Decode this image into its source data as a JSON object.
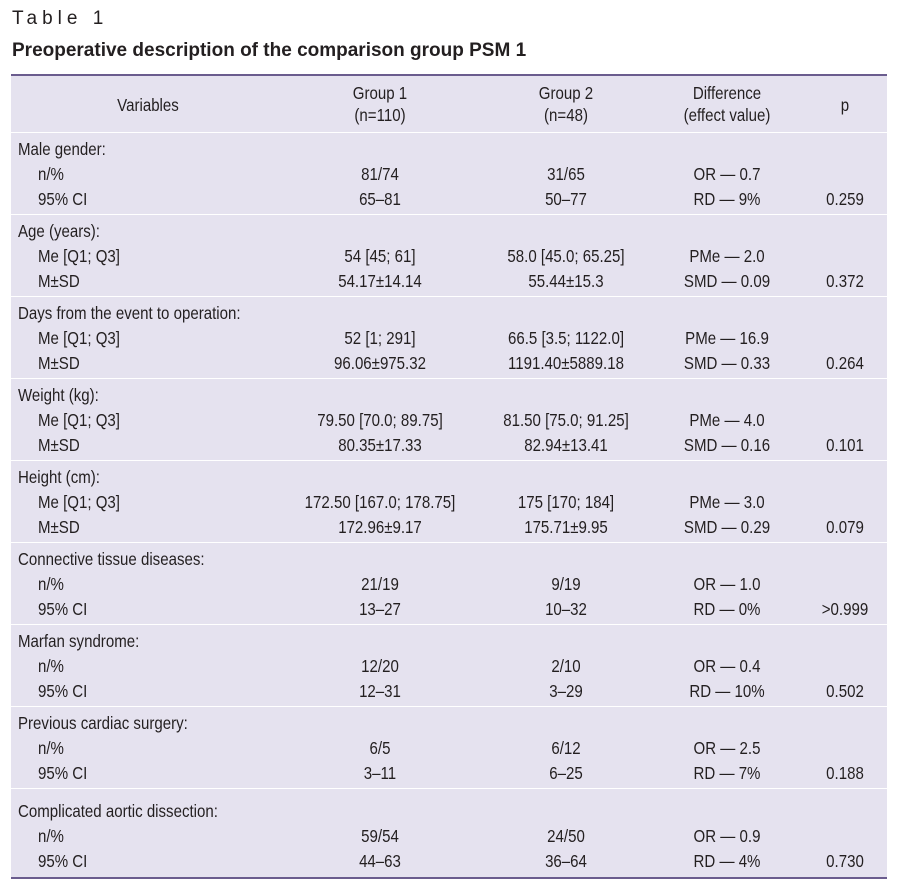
{
  "caption": {
    "label": "Table 1",
    "title": "Preoperative description of the comparison group PSM 1"
  },
  "header": {
    "variables": "Variables",
    "group1_line1": "Group 1",
    "group1_line2": "(n=110)",
    "group2_line1": "Group 2",
    "group2_line2": "(n=48)",
    "difference_line1": "Difference",
    "difference_line2": "(effect value)",
    "p": "p"
  },
  "groups": [
    {
      "title": "Male gender:",
      "rows": [
        {
          "label": "n/%",
          "g1": "81/74",
          "g2": "31/65",
          "diff": "OR — 0.7",
          "p": ""
        },
        {
          "label": "95% CI",
          "g1": "65–81",
          "g2": "50–77",
          "diff": "RD — 9%",
          "p": "0.259"
        }
      ]
    },
    {
      "title": "Age (years):",
      "rows": [
        {
          "label": "Me [Q1; Q3]",
          "g1": "54 [45; 61]",
          "g2": "58.0 [45.0; 65.25]",
          "diff": "PMe — 2.0",
          "p": ""
        },
        {
          "label": "M±SD",
          "g1": "54.17±14.14",
          "g2": "55.44±15.3",
          "diff": "SMD — 0.09",
          "p": "0.372"
        }
      ]
    },
    {
      "title": "Days from the event to operation:",
      "rows": [
        {
          "label": "Me [Q1; Q3]",
          "g1": "52 [1; 291]",
          "g2": "66.5 [3.5; 1122.0]",
          "diff": "PMe — 16.9",
          "p": ""
        },
        {
          "label": "M±SD",
          "g1": "96.06±975.32",
          "g2": "1191.40±5889.18",
          "diff": "SMD — 0.33",
          "p": "0.264"
        }
      ]
    },
    {
      "title": "Weight (kg):",
      "rows": [
        {
          "label": "Me [Q1; Q3]",
          "g1": "79.50 [70.0; 89.75]",
          "g2": "81.50 [75.0; 91.25]",
          "diff": "PMe — 4.0",
          "p": ""
        },
        {
          "label": "M±SD",
          "g1": "80.35±17.33",
          "g2": "82.94±13.41",
          "diff": "SMD — 0.16",
          "p": "0.101"
        }
      ]
    },
    {
      "title": "Height (cm):",
      "rows": [
        {
          "label": "Me [Q1; Q3]",
          "g1": "172.50 [167.0; 178.75]",
          "g2": "175 [170; 184]",
          "diff": "PMe — 3.0",
          "p": ""
        },
        {
          "label": "M±SD",
          "g1": "172.96±9.17",
          "g2": "175.71±9.95",
          "diff": "SMD — 0.29",
          "p": "0.079"
        }
      ]
    },
    {
      "title": "Connective tissue diseases:",
      "rows": [
        {
          "label": "n/%",
          "g1": "21/19",
          "g2": "9/19",
          "diff": "OR — 1.0",
          "p": ""
        },
        {
          "label": "95% CI",
          "g1": "13–27",
          "g2": "10–32",
          "diff": "RD — 0%",
          "p": ">0.999"
        }
      ]
    },
    {
      "title": "Marfan syndrome:",
      "rows": [
        {
          "label": "n/%",
          "g1": "12/20",
          "g2": "2/10",
          "diff": "OR — 0.4",
          "p": ""
        },
        {
          "label": "95% CI",
          "g1": "12–31",
          "g2": "3–29",
          "diff": "RD — 10%",
          "p": "0.502"
        }
      ]
    },
    {
      "title": "Previous cardiac surgery:",
      "rows": [
        {
          "label": "n/%",
          "g1": "6/5",
          "g2": "6/12",
          "diff": "OR — 2.5",
          "p": ""
        },
        {
          "label": "95% CI",
          "g1": "3–11",
          "g2": "6–25",
          "diff": "RD — 7%",
          "p": "0.188"
        }
      ]
    },
    {
      "title": "Complicated aortic dissection:",
      "rows": [
        {
          "label": "n/%",
          "g1": "59/54",
          "g2": "24/50",
          "diff": "OR — 0.9",
          "p": ""
        },
        {
          "label": "95% CI",
          "g1": "44–63",
          "g2": "36–64",
          "diff": "RD — 4%",
          "p": "0.730"
        }
      ]
    }
  ]
}
